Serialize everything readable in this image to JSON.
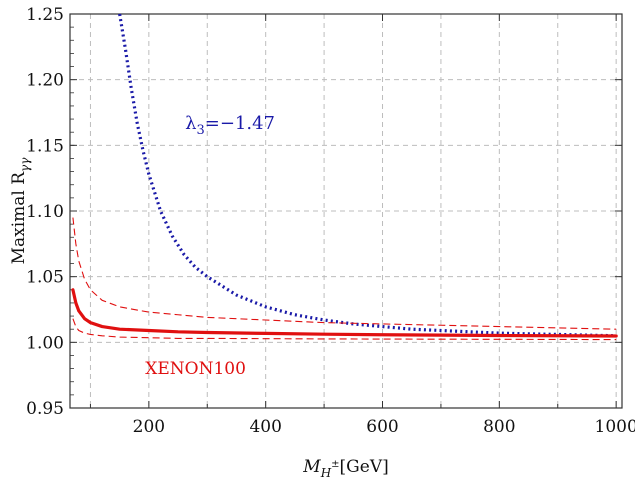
{
  "chart_data": {
    "type": "line",
    "title": "",
    "xlabel_main": "M",
    "xlabel_sub": "H",
    "xlabel_sup": "±",
    "xlabel_unit": "[GeV]",
    "ylabel_main": "Maximal R",
    "ylabel_sub": "γγ",
    "xlim": [
      65,
      1010
    ],
    "ylim": [
      0.95,
      1.25
    ],
    "x_ticks": [
      200,
      400,
      600,
      800,
      1000
    ],
    "x_tick_labels": [
      "200",
      "400",
      "600",
      "800",
      "1000"
    ],
    "x_minor_ticks": [
      100,
      300,
      500,
      700,
      900
    ],
    "y_ticks": [
      0.95,
      1.0,
      1.05,
      1.1,
      1.15,
      1.2,
      1.25
    ],
    "y_tick_labels": [
      "0.95",
      "1.00",
      "1.05",
      "1.10",
      "1.15",
      "1.20",
      "1.25"
    ],
    "grid": true,
    "annotations": [
      {
        "text_main": "λ",
        "text_sub": "3",
        "text_rest": "=−1.47",
        "color": "#1a1aa8",
        "x": 262,
        "y": 1.167
      },
      {
        "text": "XENON100",
        "color": "#e01010",
        "x": 280,
        "y": 0.989
      }
    ],
    "series": [
      {
        "style": "dotted",
        "color": "#1a1aa8",
        "x": [
          150,
          160,
          170,
          180,
          190,
          200,
          220,
          240,
          260,
          280,
          300,
          350,
          400,
          450,
          500,
          550,
          600,
          650,
          700,
          750,
          800,
          850,
          900,
          950,
          1000
        ],
        "y": [
          1.25,
          1.223,
          1.193,
          1.167,
          1.146,
          1.128,
          1.1,
          1.081,
          1.067,
          1.057,
          1.05,
          1.036,
          1.027,
          1.021,
          1.017,
          1.014,
          1.012,
          1.01,
          1.009,
          1.008,
          1.007,
          1.0065,
          1.006,
          1.0055,
          1.005
        ]
      },
      {
        "style": "solid",
        "color": "#e01010",
        "x": [
          70,
          75,
          80,
          90,
          100,
          120,
          150,
          200,
          250,
          300,
          400,
          500,
          600,
          700,
          800,
          900,
          1000
        ],
        "y": [
          1.04,
          1.03,
          1.024,
          1.018,
          1.015,
          1.012,
          1.01,
          1.009,
          1.008,
          1.0075,
          1.0068,
          1.0062,
          1.0058,
          1.0055,
          1.0052,
          1.005,
          1.0048
        ]
      },
      {
        "style": "dashed",
        "color": "#e01010",
        "x": [
          70,
          75,
          80,
          90,
          100,
          120,
          150,
          200,
          250,
          300,
          400,
          500,
          600,
          700,
          800,
          900,
          1000
        ],
        "y": [
          1.095,
          1.075,
          1.062,
          1.048,
          1.04,
          1.032,
          1.027,
          1.023,
          1.021,
          1.019,
          1.017,
          1.015,
          1.014,
          1.013,
          1.012,
          1.011,
          1.01
        ]
      },
      {
        "style": "dashed",
        "color": "#e01010",
        "x": [
          70,
          75,
          80,
          90,
          100,
          120,
          150,
          200,
          250,
          300,
          400,
          500,
          600,
          700,
          800,
          900,
          1000
        ],
        "y": [
          1.018,
          1.012,
          1.009,
          1.007,
          1.006,
          1.005,
          1.004,
          1.0035,
          1.003,
          1.003,
          1.0028,
          1.0026,
          1.0025,
          1.0024,
          1.0023,
          1.0022,
          1.0021
        ]
      }
    ]
  }
}
